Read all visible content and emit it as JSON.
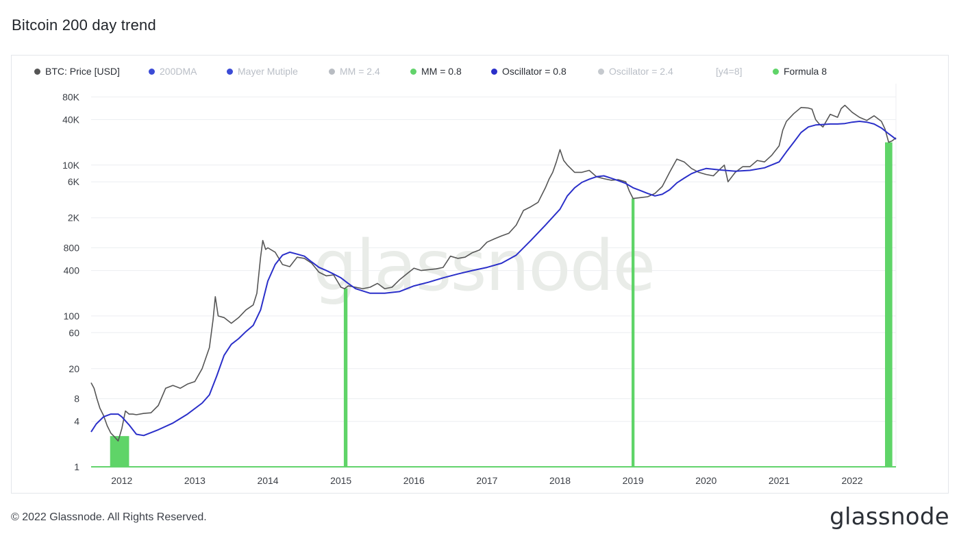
{
  "header": {
    "title": "Bitcoin 200 day trend"
  },
  "footer": {
    "copyright": "© 2022 Glassnode. All Rights Reserved.",
    "logo_text": "glassnode"
  },
  "watermark": "glassnode",
  "legend": [
    {
      "label": "BTC: Price [USD]",
      "color": "#555555",
      "active": true
    },
    {
      "label": "200DMA",
      "color": "#3b4bd6",
      "active": false
    },
    {
      "label": "Mayer Mutiple",
      "color": "#3b4bd6",
      "active": false
    },
    {
      "label": "MM = 2.4",
      "color": "#b8bcc2",
      "active": false
    },
    {
      "label": "MM = 0.8",
      "color": "#62d36b",
      "active": true
    },
    {
      "label": "Oscillator = 0.8",
      "color": "#2a2fc9",
      "active": true
    },
    {
      "label": "Oscillator = 2.4",
      "color": "#c5c9ce",
      "active": false
    },
    {
      "label": "[y4=8]",
      "color": "",
      "active": false
    },
    {
      "label": "Formula 8",
      "color": "#5fd468",
      "active": true
    }
  ],
  "chart_data": {
    "type": "line",
    "title": "Bitcoin 200 day trend",
    "y_scale": "log",
    "ylim": [
      1,
      120000
    ],
    "xlim": [
      2011.58,
      2022.6
    ],
    "y_ticks": [
      {
        "value": 80000,
        "label": "80K"
      },
      {
        "value": 40000,
        "label": "40K"
      },
      {
        "value": 10000,
        "label": "10K"
      },
      {
        "value": 6000,
        "label": "6K"
      },
      {
        "value": 2000,
        "label": "2K"
      },
      {
        "value": 800,
        "label": "800"
      },
      {
        "value": 400,
        "label": "400"
      },
      {
        "value": 100,
        "label": "100"
      },
      {
        "value": 60,
        "label": "60"
      },
      {
        "value": 20,
        "label": "20"
      },
      {
        "value": 8,
        "label": "8"
      },
      {
        "value": 4,
        "label": "4"
      },
      {
        "value": 1,
        "label": "1"
      }
    ],
    "x_ticks": [
      {
        "value": 2012.0,
        "label": "2012"
      },
      {
        "value": 2013.0,
        "label": "2013"
      },
      {
        "value": 2014.0,
        "label": "2014"
      },
      {
        "value": 2015.0,
        "label": "2015"
      },
      {
        "value": 2016.0,
        "label": "2016"
      },
      {
        "value": 2017.0,
        "label": "2017"
      },
      {
        "value": 2018.0,
        "label": "2018"
      },
      {
        "value": 2019.0,
        "label": "2019"
      },
      {
        "value": 2020.0,
        "label": "2020"
      },
      {
        "value": 2021.0,
        "label": "2021"
      },
      {
        "value": 2022.0,
        "label": "2022"
      }
    ],
    "grid": true,
    "series": [
      {
        "name": "BTC: Price [USD]",
        "color": "#555555",
        "x": [
          2011.58,
          2011.62,
          2011.66,
          2011.7,
          2011.75,
          2011.8,
          2011.85,
          2011.9,
          2011.95,
          2012.0,
          2012.05,
          2012.1,
          2012.15,
          2012.2,
          2012.3,
          2012.4,
          2012.5,
          2012.6,
          2012.7,
          2012.8,
          2012.9,
          2013.0,
          2013.1,
          2013.2,
          2013.25,
          2013.28,
          2013.32,
          2013.4,
          2013.5,
          2013.6,
          2013.7,
          2013.8,
          2013.85,
          2013.9,
          2013.93,
          2013.97,
          2014.0,
          2014.1,
          2014.2,
          2014.3,
          2014.4,
          2014.5,
          2014.6,
          2014.7,
          2014.8,
          2014.9,
          2015.0,
          2015.05,
          2015.1,
          2015.2,
          2015.3,
          2015.4,
          2015.5,
          2015.6,
          2015.7,
          2015.8,
          2015.9,
          2016.0,
          2016.1,
          2016.2,
          2016.3,
          2016.4,
          2016.5,
          2016.6,
          2016.7,
          2016.8,
          2016.9,
          2017.0,
          2017.1,
          2017.2,
          2017.3,
          2017.4,
          2017.5,
          2017.6,
          2017.7,
          2017.8,
          2017.85,
          2017.9,
          2017.95,
          2018.0,
          2018.05,
          2018.1,
          2018.2,
          2018.3,
          2018.4,
          2018.5,
          2018.6,
          2018.7,
          2018.8,
          2018.9,
          2018.95,
          2019.0,
          2019.1,
          2019.2,
          2019.3,
          2019.4,
          2019.5,
          2019.6,
          2019.7,
          2019.8,
          2019.9,
          2020.0,
          2020.1,
          2020.2,
          2020.25,
          2020.3,
          2020.4,
          2020.5,
          2020.6,
          2020.7,
          2020.8,
          2020.9,
          2021.0,
          2021.05,
          2021.1,
          2021.2,
          2021.3,
          2021.4,
          2021.45,
          2021.5,
          2021.55,
          2021.6,
          2021.7,
          2021.8,
          2021.85,
          2021.9,
          2022.0,
          2022.1,
          2022.2,
          2022.3,
          2022.4,
          2022.45,
          2022.5,
          2022.55,
          2022.6
        ],
        "values": [
          13,
          11,
          8,
          6,
          4.8,
          3.5,
          2.8,
          2.5,
          2.2,
          3.2,
          5.5,
          5.0,
          5.0,
          4.9,
          5.1,
          5.2,
          6.5,
          11,
          12,
          11,
          12.5,
          13.5,
          20,
          38,
          90,
          180,
          100,
          95,
          80,
          95,
          120,
          140,
          200,
          600,
          1000,
          760,
          800,
          700,
          480,
          450,
          600,
          580,
          500,
          380,
          340,
          350,
          240,
          230,
          250,
          240,
          230,
          240,
          270,
          230,
          240,
          300,
          360,
          430,
          400,
          410,
          420,
          440,
          620,
          580,
          600,
          690,
          750,
          950,
          1050,
          1150,
          1250,
          1600,
          2500,
          2800,
          3200,
          5000,
          6500,
          8000,
          11000,
          16000,
          11500,
          10000,
          8000,
          8000,
          8500,
          7000,
          6600,
          6300,
          6400,
          6000,
          4500,
          3600,
          3700,
          3800,
          4200,
          5200,
          8000,
          12000,
          11000,
          9000,
          8000,
          7500,
          7200,
          9000,
          10000,
          6000,
          8000,
          9500,
          9500,
          11500,
          11000,
          13500,
          18000,
          29000,
          38000,
          48000,
          58000,
          57000,
          55000,
          40000,
          35000,
          32000,
          47000,
          43000,
          56000,
          62000,
          50000,
          43000,
          39000,
          45000,
          38000,
          30000,
          20000,
          21000,
          23000
        ]
      },
      {
        "name": "Oscillator = 0.8",
        "color": "#2a2fc9",
        "x": [
          2011.58,
          2011.65,
          2011.75,
          2011.85,
          2011.95,
          2012.0,
          2012.1,
          2012.2,
          2012.3,
          2012.5,
          2012.7,
          2012.9,
          2013.1,
          2013.2,
          2013.3,
          2013.4,
          2013.5,
          2013.6,
          2013.7,
          2013.8,
          2013.9,
          2014.0,
          2014.1,
          2014.2,
          2014.3,
          2014.4,
          2014.5,
          2014.6,
          2014.7,
          2014.8,
          2014.9,
          2015.0,
          2015.1,
          2015.2,
          2015.4,
          2015.6,
          2015.8,
          2016.0,
          2016.2,
          2016.4,
          2016.6,
          2016.8,
          2017.0,
          2017.2,
          2017.4,
          2017.6,
          2017.8,
          2018.0,
          2018.1,
          2018.2,
          2018.3,
          2018.4,
          2018.5,
          2018.6,
          2018.7,
          2018.8,
          2018.9,
          2019.0,
          2019.1,
          2019.2,
          2019.3,
          2019.4,
          2019.5,
          2019.6,
          2019.7,
          2019.8,
          2019.9,
          2020.0,
          2020.2,
          2020.4,
          2020.6,
          2020.8,
          2021.0,
          2021.1,
          2021.2,
          2021.3,
          2021.4,
          2021.5,
          2021.6,
          2021.7,
          2021.8,
          2021.9,
          2022.0,
          2022.1,
          2022.2,
          2022.3,
          2022.4,
          2022.5,
          2022.6
        ],
        "values": [
          2.9,
          3.7,
          4.6,
          5.0,
          5.0,
          4.6,
          3.6,
          2.7,
          2.6,
          3.1,
          3.8,
          5.0,
          7.0,
          9.0,
          16,
          30,
          42,
          50,
          62,
          75,
          120,
          290,
          480,
          640,
          700,
          660,
          620,
          520,
          440,
          400,
          360,
          320,
          270,
          230,
          200,
          200,
          210,
          250,
          280,
          320,
          360,
          400,
          440,
          500,
          640,
          1000,
          1600,
          2600,
          3900,
          5000,
          5900,
          6500,
          7000,
          7200,
          6700,
          6200,
          5700,
          5000,
          4600,
          4200,
          3900,
          4100,
          4700,
          5800,
          6700,
          7700,
          8400,
          9000,
          8600,
          8300,
          8500,
          9200,
          11000,
          15000,
          20000,
          27000,
          32000,
          34000,
          34500,
          35000,
          35000,
          35500,
          37000,
          38000,
          37000,
          35000,
          31000,
          26000,
          22000
        ]
      },
      {
        "name": "Formula 8",
        "color": "#5fd468",
        "type": "signal_bars",
        "ranges": [
          [
            2011.84,
            2012.1
          ],
          [
            2015.04,
            2015.09
          ],
          [
            2018.98,
            2019.02
          ],
          [
            2022.45,
            2022.55
          ]
        ]
      }
    ]
  }
}
